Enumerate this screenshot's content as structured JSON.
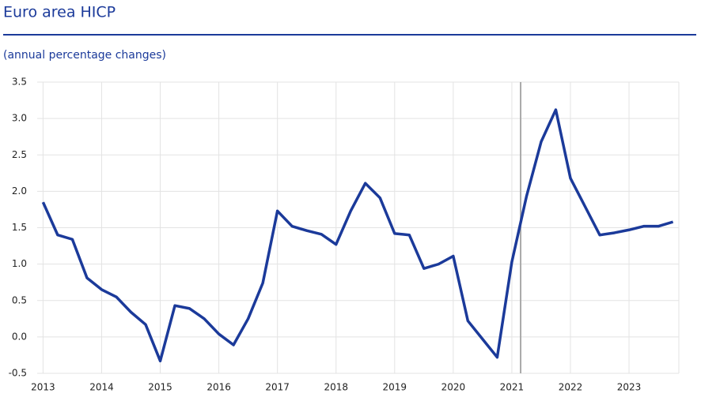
{
  "chart_data": {
    "type": "line",
    "title": "Euro area HICP",
    "subtitle": "(annual percentage changes)",
    "x": [
      2013,
      2013.25,
      2013.5,
      2013.75,
      2014,
      2014.25,
      2014.5,
      2014.75,
      2015,
      2015.25,
      2015.5,
      2015.75,
      2016,
      2016.25,
      2016.5,
      2016.75,
      2017,
      2017.25,
      2017.5,
      2017.75,
      2018,
      2018.25,
      2018.5,
      2018.75,
      2019,
      2019.25,
      2019.5,
      2019.75,
      2020,
      2020.25,
      2020.5,
      2020.75,
      2021,
      2021.25,
      2021.5,
      2021.75,
      2022,
      2022.25,
      2022.5,
      2022.75,
      2023,
      2023.25,
      2023.5,
      2023.75
    ],
    "series": [
      {
        "name": "HICP",
        "color": "#1b3a9a",
        "values": [
          1.85,
          1.4,
          1.34,
          0.81,
          0.65,
          0.55,
          0.34,
          0.17,
          -0.33,
          0.43,
          0.39,
          0.25,
          0.04,
          -0.11,
          0.25,
          0.74,
          1.73,
          1.52,
          1.46,
          1.41,
          1.27,
          1.73,
          2.11,
          1.91,
          1.42,
          1.4,
          0.94,
          1.0,
          1.11,
          0.22,
          -0.03,
          -0.28,
          1.03,
          1.93,
          2.68,
          3.12,
          2.18,
          1.79,
          1.4,
          1.43,
          1.47,
          1.52,
          1.52,
          1.58
        ]
      }
    ],
    "xlim": [
      2012.9,
      2023.85
    ],
    "xticks": [
      2013,
      2014,
      2015,
      2016,
      2017,
      2018,
      2019,
      2020,
      2021,
      2022,
      2023
    ],
    "ylim": [
      -0.5,
      3.5
    ],
    "yticks": [
      {
        "value": -0.5,
        "label": "-0.5"
      },
      {
        "value": 0,
        "label": "0.0"
      },
      {
        "value": 0.5,
        "label": "0.5"
      },
      {
        "value": 1,
        "label": "1.0"
      },
      {
        "value": 1.5,
        "label": "1.5"
      },
      {
        "value": 2,
        "label": "2.0"
      },
      {
        "value": 2.5,
        "label": "2.5"
      },
      {
        "value": 3,
        "label": "3.0"
      },
      {
        "value": 3.5,
        "label": "3.5"
      }
    ],
    "reference_line_x": 2021.15,
    "grid": true
  }
}
